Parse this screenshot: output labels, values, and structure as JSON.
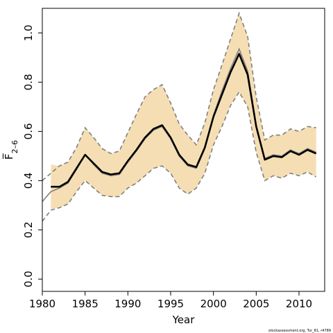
{
  "chart_data": {
    "type": "line",
    "xlabel": "Year",
    "ylabel": "F̅",
    "ylabel_subscript": "2–6",
    "xlim": [
      1980,
      2013
    ],
    "ylim": [
      0,
      1.1
    ],
    "x_ticks": [
      1980,
      1985,
      1990,
      1995,
      2000,
      2005,
      2010
    ],
    "y_ticks": [
      0.0,
      0.2,
      0.4,
      0.6,
      0.8,
      1.0
    ],
    "y_tick_labels": [
      "0.0",
      "0.2",
      "0.4",
      "0.6",
      "0.8",
      "1.0"
    ],
    "grid": false,
    "colors": {
      "band": "#f5deb3",
      "estimate": "#000000",
      "other": "#808080",
      "bounds": "#808080"
    },
    "series": [
      {
        "role": "estimate",
        "x": [
          1981,
          1982,
          1983,
          1984,
          1985,
          1986,
          1987,
          1988,
          1989,
          1990,
          1991,
          1992,
          1993,
          1994,
          1995,
          1996,
          1997,
          1998,
          1999,
          2000,
          2001,
          2002,
          2003,
          2004,
          2005,
          2006,
          2007,
          2008,
          2009,
          2010,
          2011,
          2012
        ],
        "y": [
          0.375,
          0.375,
          0.395,
          0.45,
          0.505,
          0.47,
          0.435,
          0.425,
          0.43,
          0.48,
          0.525,
          0.575,
          0.61,
          0.625,
          0.575,
          0.505,
          0.465,
          0.455,
          0.535,
          0.66,
          0.75,
          0.84,
          0.915,
          0.83,
          0.62,
          0.485,
          0.5,
          0.495,
          0.52,
          0.505,
          0.525,
          0.51
        ]
      },
      {
        "role": "other",
        "x": [
          1980,
          1981,
          1982,
          1983,
          1984,
          1985,
          1986,
          1987,
          1988,
          1989,
          1990,
          1991,
          1992,
          1993,
          1994,
          1995,
          1996,
          1997,
          1998,
          1999,
          2000,
          2001,
          2002,
          2003,
          2004,
          2005,
          2006,
          2007,
          2008,
          2009,
          2010,
          2011,
          2012
        ],
        "y": [
          0.315,
          0.355,
          0.37,
          0.39,
          0.445,
          0.505,
          0.465,
          0.43,
          0.42,
          0.425,
          0.475,
          0.52,
          0.57,
          0.605,
          0.62,
          0.57,
          0.5,
          0.46,
          0.45,
          0.53,
          0.665,
          0.765,
          0.855,
          0.935,
          0.845,
          0.625,
          0.49,
          0.505,
          0.5,
          0.525,
          0.51,
          0.53,
          0.515
        ]
      }
    ],
    "interval": {
      "x": [
        1981,
        1982,
        1983,
        1984,
        1985,
        1986,
        1987,
        1988,
        1989,
        1990,
        1991,
        1992,
        1993,
        1994,
        1995,
        1996,
        1997,
        1998,
        1999,
        2000,
        2001,
        2002,
        2003,
        2004,
        2005,
        2006,
        2007,
        2008,
        2009,
        2010,
        2011,
        2012
      ],
      "lower": [
        0.285,
        0.29,
        0.305,
        0.355,
        0.4,
        0.37,
        0.34,
        0.335,
        0.335,
        0.37,
        0.39,
        0.42,
        0.45,
        0.46,
        0.43,
        0.37,
        0.345,
        0.37,
        0.43,
        0.545,
        0.62,
        0.705,
        0.76,
        0.7,
        0.515,
        0.4,
        0.42,
        0.41,
        0.43,
        0.42,
        0.435,
        0.415
      ],
      "upper": [
        0.465,
        0.46,
        0.475,
        0.535,
        0.615,
        0.575,
        0.53,
        0.51,
        0.52,
        0.595,
        0.67,
        0.74,
        0.77,
        0.79,
        0.715,
        0.63,
        0.585,
        0.545,
        0.635,
        0.77,
        0.87,
        0.975,
        1.08,
        0.985,
        0.74,
        0.565,
        0.585,
        0.585,
        0.61,
        0.6,
        0.62,
        0.615
      ]
    },
    "bounds_extended": {
      "x": [
        1980,
        1981
      ],
      "lower": [
        0.235,
        0.28
      ],
      "upper": [
        0.4,
        0.43
      ]
    }
  },
  "watermark": "stockassessment.org, Tur_81, r4789"
}
